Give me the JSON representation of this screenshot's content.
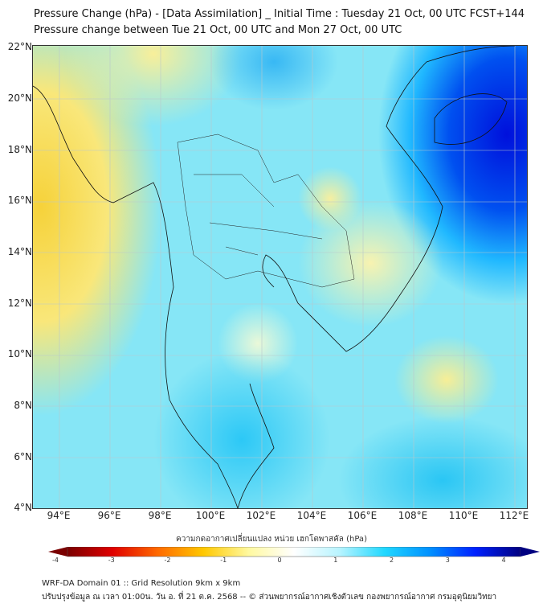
{
  "title": {
    "line1": "Pressure Change (hPa) - [Data Assimilation] _ Initial Time : Tuesday 21 Oct, 00 UTC FCST+144",
    "line2": "Pressure change between Tue 21 Oct, 00 UTC and Mon 27 Oct, 00 UTC"
  },
  "map": {
    "lat_labels": [
      "22°N",
      "20°N",
      "18°N",
      "16°N",
      "14°N",
      "12°N",
      "10°N",
      "8°N",
      "6°N",
      "4°N"
    ],
    "lon_labels": [
      "94°E",
      "96°E",
      "98°E",
      "100°E",
      "102°E",
      "104°E",
      "106°E",
      "108°E",
      "110°E",
      "112°E"
    ],
    "lat_range": [
      4,
      22
    ],
    "lon_range": [
      93,
      112.5
    ]
  },
  "colorbar": {
    "label": "ความกดอากาศเปลี่ยนแปลง หน่วย เฮกโตพาสคัล (hPa)",
    "ticks": [
      "-4",
      "-3",
      "-2",
      "-1",
      "0",
      "1",
      "2",
      "3",
      "4"
    ],
    "range": [
      -4,
      4
    ],
    "colors": [
      "#7a0000",
      "#e00000",
      "#ff6a00",
      "#ffc800",
      "#fff9a0",
      "#ffffff",
      "#b8f4ff",
      "#20d8ff",
      "#0090ff",
      "#0020ff",
      "#000080"
    ]
  },
  "footer": {
    "line1": "WRF-DA Domain 01 :: Grid Resolution 9km x 9km",
    "line2": "ปรับปรุงข้อมูล ณ เวลา 01:00น. วัน อ. ที่ 21 ต.ค. 2568 -- © ส่วนพยากรณ์อากาศเชิงตัวเลข กองพยากรณ์อากาศ กรมอุตุนิยมวิทยา"
  }
}
